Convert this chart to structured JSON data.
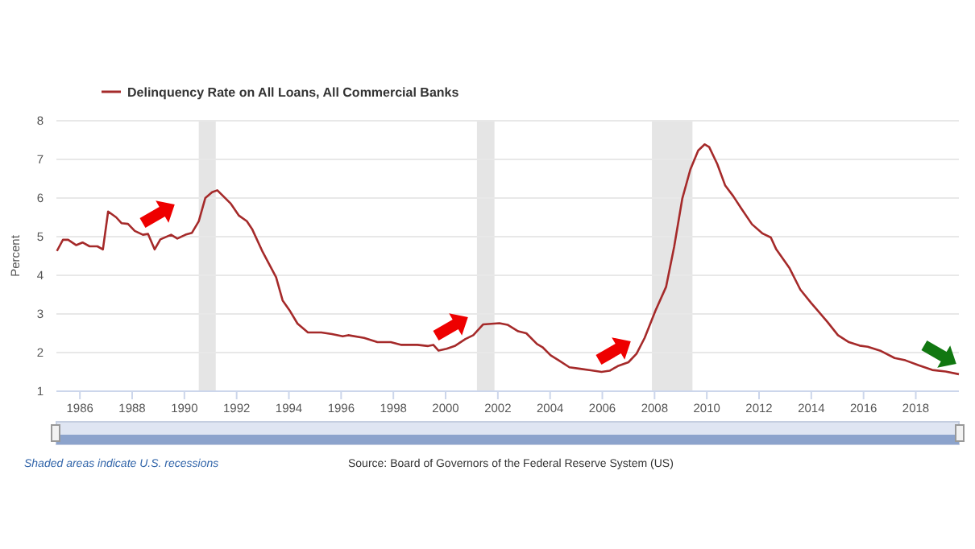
{
  "chart_data": {
    "type": "line",
    "ylabel": "Percent",
    "annotations": [
      "Shaded areas indicate U.S. recessions",
      "Source: Board of Governors of the Federal Reserve System (US)"
    ],
    "xlim": [
      1985.1,
      2019.65
    ],
    "xticks": [
      1986,
      1988,
      1990,
      1992,
      1994,
      1996,
      1998,
      2000,
      2002,
      2004,
      2006,
      2008,
      2010,
      2012,
      2014,
      2016,
      2018
    ],
    "ylim": [
      1,
      8
    ],
    "yticks": [
      1,
      2,
      3,
      4,
      5,
      6,
      7,
      8
    ],
    "grid": "y",
    "legend": "top left",
    "marker": "none",
    "line_style": "solid",
    "bands": [
      {
        "axis": "x",
        "from": 1990.55,
        "to": 1991.2,
        "color": "#e5e5e5"
      },
      {
        "axis": "x",
        "from": 2001.2,
        "to": 2001.87,
        "color": "#e5e5e5"
      },
      {
        "axis": "x",
        "from": 2007.9,
        "to": 2009.45,
        "color": "#e5e5e5"
      }
    ],
    "series": [
      {
        "name": "Delinquency Rate on All Loans, All Commercial Banks",
        "color": "#a52a2a",
        "x": [
          1985.12,
          1985.35,
          1985.55,
          1985.86,
          1986.1,
          1986.37,
          1986.67,
          1986.88,
          1987.08,
          1987.39,
          1987.59,
          1987.84,
          1988.1,
          1988.41,
          1988.61,
          1988.86,
          1989.08,
          1989.49,
          1989.73,
          1990.04,
          1990.29,
          1990.55,
          1990.8,
          1991.06,
          1991.26,
          1991.78,
          1992.08,
          1992.39,
          1992.59,
          1993.0,
          1993.51,
          1993.76,
          1994.02,
          1994.33,
          1994.73,
          1995.24,
          1995.65,
          1996.06,
          1996.27,
          1996.88,
          1997.39,
          1997.9,
          1998.31,
          1998.92,
          1999.33,
          1999.53,
          1999.73,
          2000.04,
          2000.35,
          2000.76,
          2001.06,
          2001.44,
          2002.06,
          2002.37,
          2002.78,
          2003.09,
          2003.5,
          2003.71,
          2004.02,
          2004.33,
          2004.74,
          2005.15,
          2005.56,
          2005.97,
          2006.28,
          2006.59,
          2007.0,
          2007.31,
          2007.62,
          2008.03,
          2008.44,
          2008.75,
          2009.06,
          2009.37,
          2009.67,
          2009.92,
          2010.09,
          2010.4,
          2010.7,
          2011.01,
          2011.32,
          2011.73,
          2012.14,
          2012.45,
          2012.66,
          2013.17,
          2013.58,
          2014.0,
          2014.61,
          2015.02,
          2015.44,
          2015.85,
          2016.16,
          2016.67,
          2017.19,
          2017.6,
          2018.11,
          2018.63,
          2019.14,
          2019.65
        ],
        "values": [
          4.63,
          4.92,
          4.92,
          4.78,
          4.85,
          4.75,
          4.75,
          4.67,
          5.65,
          5.5,
          5.35,
          5.33,
          5.15,
          5.05,
          5.07,
          4.67,
          4.93,
          5.05,
          4.95,
          5.05,
          5.1,
          5.4,
          6.0,
          6.15,
          6.2,
          5.85,
          5.55,
          5.4,
          5.2,
          4.6,
          3.95,
          3.35,
          3.1,
          2.75,
          2.52,
          2.52,
          2.48,
          2.42,
          2.45,
          2.38,
          2.27,
          2.27,
          2.2,
          2.2,
          2.17,
          2.2,
          2.05,
          2.1,
          2.17,
          2.35,
          2.45,
          2.73,
          2.76,
          2.72,
          2.55,
          2.5,
          2.22,
          2.14,
          1.93,
          1.8,
          1.62,
          1.58,
          1.54,
          1.5,
          1.53,
          1.65,
          1.75,
          1.97,
          2.38,
          3.08,
          3.7,
          4.74,
          5.98,
          6.74,
          7.23,
          7.39,
          7.32,
          6.88,
          6.33,
          6.05,
          5.73,
          5.32,
          5.08,
          4.98,
          4.67,
          4.18,
          3.63,
          3.28,
          2.8,
          2.45,
          2.27,
          2.18,
          2.15,
          2.04,
          1.86,
          1.8,
          1.67,
          1.55,
          1.51,
          1.44
        ]
      }
    ]
  }
}
